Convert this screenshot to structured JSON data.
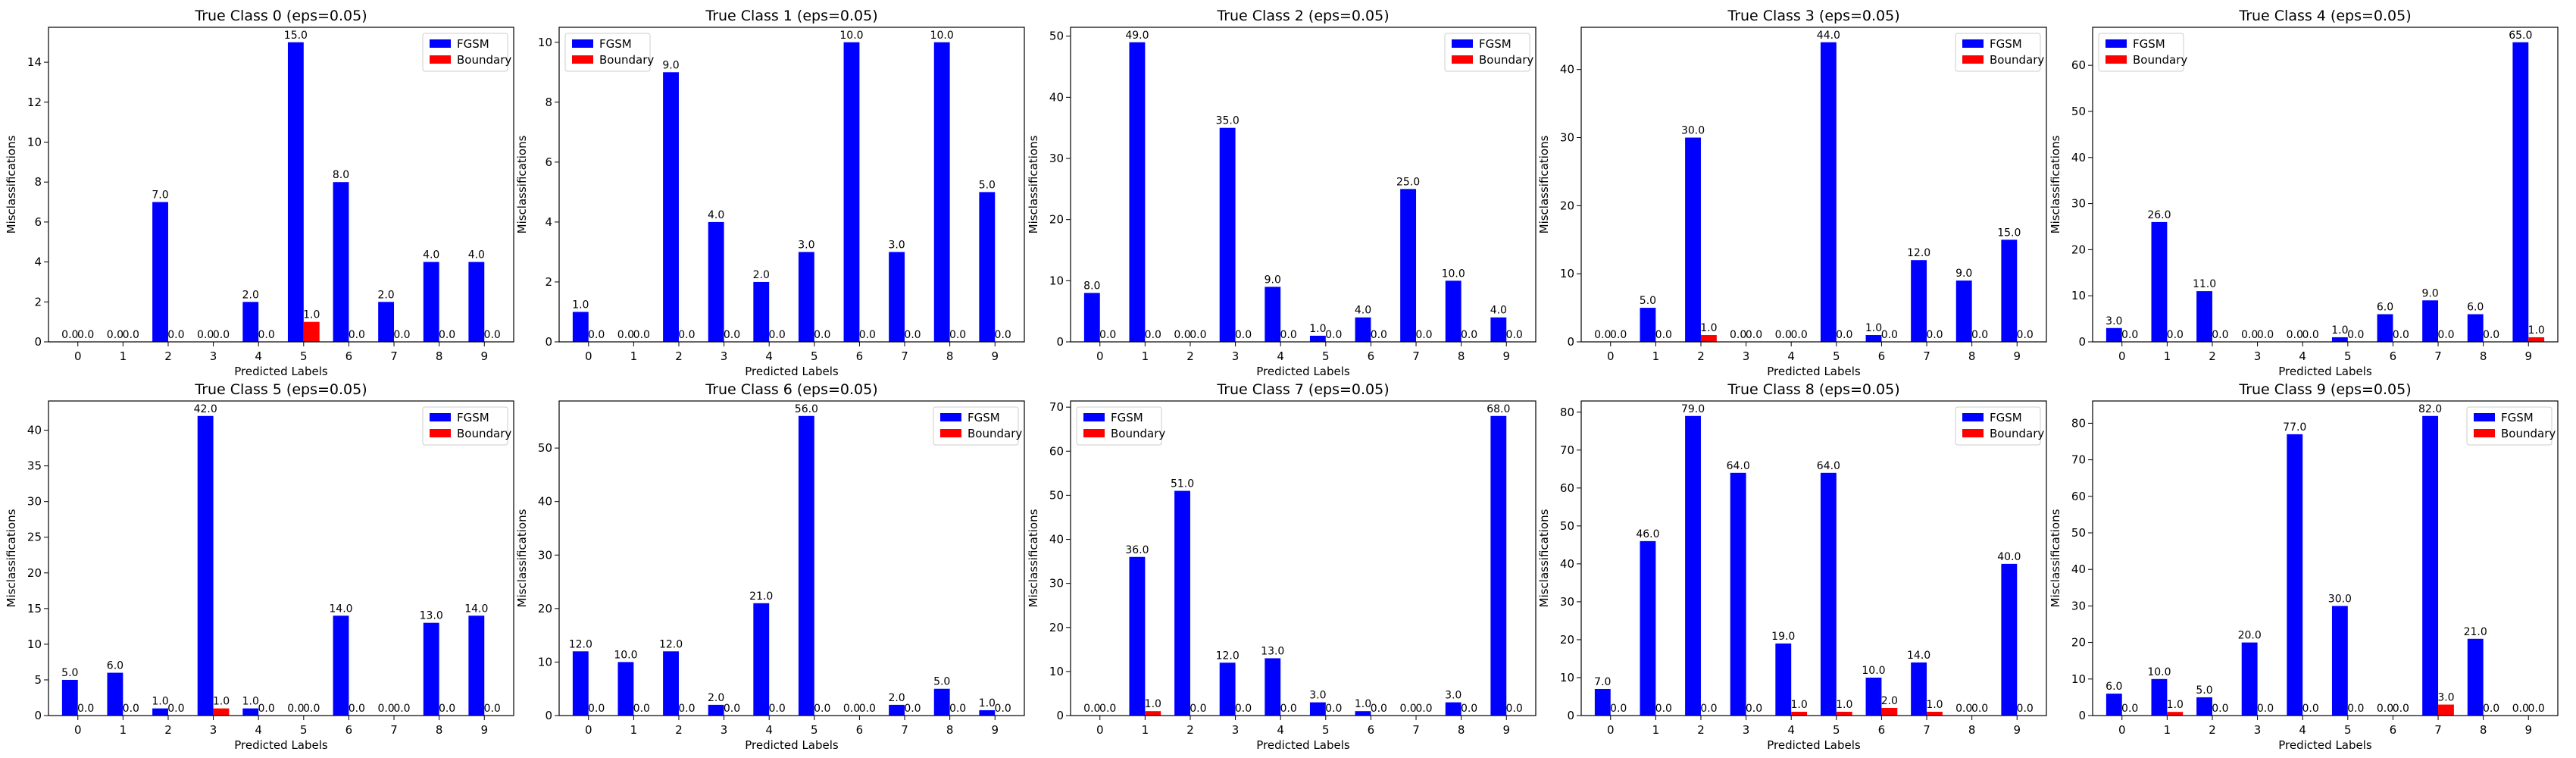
{
  "colors": {
    "fgsm": "#0000ff",
    "boundary": "#ff0000"
  },
  "chart_data": [
    {
      "type": "bar",
      "title": "True Class 0 (eps=0.05)",
      "xlabel": "Predicted Labels",
      "ylabel": "Misclassifications",
      "categories": [
        "0",
        "1",
        "2",
        "3",
        "4",
        "5",
        "6",
        "7",
        "8",
        "9"
      ],
      "ylim": [
        0,
        15.75
      ],
      "yticks": [
        "0",
        "2",
        "4",
        "6",
        "8",
        "10",
        "12",
        "14"
      ],
      "legend_position": "top-right",
      "series": [
        {
          "name": "FGSM",
          "values": [
            0,
            0,
            7,
            0,
            2,
            15,
            8,
            2,
            4,
            4
          ]
        },
        {
          "name": "Boundary",
          "values": [
            0,
            0,
            0,
            0,
            0,
            1,
            0,
            0,
            0,
            0
          ]
        }
      ],
      "value_labels": {
        "fgsm": [
          "0.0",
          "0.0",
          "7.0",
          "0.0",
          "2.0",
          "15.0",
          "8.0",
          "2.0",
          "4.0",
          "4.0"
        ],
        "boundary": [
          "0.0",
          "0.0",
          "0.0",
          "0.0",
          "0.0",
          "1.0",
          "0.0",
          "0.0",
          "0.0",
          "0.0"
        ]
      }
    },
    {
      "type": "bar",
      "title": "True Class 1 (eps=0.05)",
      "xlabel": "Predicted Labels",
      "ylabel": "Misclassifications",
      "categories": [
        "0",
        "1",
        "2",
        "3",
        "4",
        "5",
        "6",
        "7",
        "8",
        "9"
      ],
      "ylim": [
        0,
        10.5
      ],
      "yticks": [
        "0",
        "2",
        "4",
        "6",
        "8",
        "10"
      ],
      "legend_position": "top-left",
      "series": [
        {
          "name": "FGSM",
          "values": [
            1,
            0,
            9,
            4,
            2,
            3,
            10,
            3,
            10,
            5
          ]
        },
        {
          "name": "Boundary",
          "values": [
            0,
            0,
            0,
            0,
            0,
            0,
            0,
            0,
            0,
            0
          ]
        }
      ],
      "value_labels": {
        "fgsm": [
          "1.0",
          "0.0",
          "9.0",
          "4.0",
          "2.0",
          "3.0",
          "10.0",
          "3.0",
          "10.0",
          "5.0"
        ],
        "boundary": [
          "0.0",
          "0.0",
          "0.0",
          "0.0",
          "0.0",
          "0.0",
          "0.0",
          "0.0",
          "0.0",
          "0.0"
        ]
      }
    },
    {
      "type": "bar",
      "title": "True Class 2 (eps=0.05)",
      "xlabel": "Predicted Labels",
      "ylabel": "Misclassifications",
      "categories": [
        "0",
        "1",
        "2",
        "3",
        "4",
        "5",
        "6",
        "7",
        "8",
        "9"
      ],
      "ylim": [
        0,
        51.45
      ],
      "yticks": [
        "0",
        "10",
        "20",
        "30",
        "40",
        "50"
      ],
      "legend_position": "top-right",
      "series": [
        {
          "name": "FGSM",
          "values": [
            8,
            49,
            0,
            35,
            9,
            1,
            4,
            25,
            10,
            4
          ]
        },
        {
          "name": "Boundary",
          "values": [
            0,
            0,
            0,
            0,
            0,
            0,
            0,
            0,
            0,
            0
          ]
        }
      ],
      "value_labels": {
        "fgsm": [
          "8.0",
          "49.0",
          "0.0",
          "35.0",
          "9.0",
          "1.0",
          "4.0",
          "25.0",
          "10.0",
          "4.0"
        ],
        "boundary": [
          "0.0",
          "0.0",
          "0.0",
          "0.0",
          "0.0",
          "0.0",
          "0.0",
          "0.0",
          "0.0",
          "0.0"
        ]
      }
    },
    {
      "type": "bar",
      "title": "True Class 3 (eps=0.05)",
      "xlabel": "Predicted Labels",
      "ylabel": "Misclassifications",
      "categories": [
        "0",
        "1",
        "2",
        "3",
        "4",
        "5",
        "6",
        "7",
        "8",
        "9"
      ],
      "ylim": [
        0,
        46.2
      ],
      "yticks": [
        "0",
        "10",
        "20",
        "30",
        "40"
      ],
      "legend_position": "top-right",
      "series": [
        {
          "name": "FGSM",
          "values": [
            0,
            5,
            30,
            0,
            0,
            44,
            1,
            12,
            9,
            15
          ]
        },
        {
          "name": "Boundary",
          "values": [
            0,
            0,
            1,
            0,
            0,
            0,
            0,
            0,
            0,
            0
          ]
        }
      ],
      "value_labels": {
        "fgsm": [
          "0.0",
          "5.0",
          "30.0",
          "0.0",
          "0.0",
          "44.0",
          "1.0",
          "12.0",
          "9.0",
          "15.0"
        ],
        "boundary": [
          "0.0",
          "0.0",
          "1.0",
          "0.0",
          "0.0",
          "0.0",
          "0.0",
          "0.0",
          "0.0",
          "0.0"
        ]
      }
    },
    {
      "type": "bar",
      "title": "True Class 4 (eps=0.05)",
      "xlabel": "Predicted Labels",
      "ylabel": "Misclassifications",
      "categories": [
        "0",
        "1",
        "2",
        "3",
        "4",
        "5",
        "6",
        "7",
        "8",
        "9"
      ],
      "ylim": [
        0,
        68.25
      ],
      "yticks": [
        "0",
        "10",
        "20",
        "30",
        "40",
        "50",
        "60"
      ],
      "legend_position": "top-left",
      "series": [
        {
          "name": "FGSM",
          "values": [
            3,
            26,
            11,
            0,
            0,
            1,
            6,
            9,
            6,
            65
          ]
        },
        {
          "name": "Boundary",
          "values": [
            0,
            0,
            0,
            0,
            0,
            0,
            0,
            0,
            0,
            1
          ]
        }
      ],
      "value_labels": {
        "fgsm": [
          "3.0",
          "26.0",
          "11.0",
          "0.0",
          "0.0",
          "1.0",
          "6.0",
          "9.0",
          "6.0",
          "65.0"
        ],
        "boundary": [
          "0.0",
          "0.0",
          "0.0",
          "0.0",
          "0.0",
          "0.0",
          "0.0",
          "0.0",
          "0.0",
          "1.0"
        ]
      }
    },
    {
      "type": "bar",
      "title": "True Class 5 (eps=0.05)",
      "xlabel": "Predicted Labels",
      "ylabel": "Misclassifications",
      "categories": [
        "0",
        "1",
        "2",
        "3",
        "4",
        "5",
        "6",
        "7",
        "8",
        "9"
      ],
      "ylim": [
        0,
        44.1
      ],
      "yticks": [
        "0",
        "5",
        "10",
        "15",
        "20",
        "25",
        "30",
        "35",
        "40"
      ],
      "legend_position": "top-right",
      "series": [
        {
          "name": "FGSM",
          "values": [
            5,
            6,
            1,
            42,
            1,
            0,
            14,
            0,
            13,
            14
          ]
        },
        {
          "name": "Boundary",
          "values": [
            0,
            0,
            0,
            1,
            0,
            0,
            0,
            0,
            0,
            0
          ]
        }
      ],
      "value_labels": {
        "fgsm": [
          "5.0",
          "6.0",
          "1.0",
          "42.0",
          "1.0",
          "0.0",
          "14.0",
          "0.0",
          "13.0",
          "14.0"
        ],
        "boundary": [
          "0.0",
          "0.0",
          "0.0",
          "1.0",
          "0.0",
          "0.0",
          "0.0",
          "0.0",
          "0.0",
          "0.0"
        ]
      }
    },
    {
      "type": "bar",
      "title": "True Class 6 (eps=0.05)",
      "xlabel": "Predicted Labels",
      "ylabel": "Misclassifications",
      "categories": [
        "0",
        "1",
        "2",
        "3",
        "4",
        "5",
        "6",
        "7",
        "8",
        "9"
      ],
      "ylim": [
        0,
        58.8
      ],
      "yticks": [
        "0",
        "10",
        "20",
        "30",
        "40",
        "50"
      ],
      "legend_position": "top-right",
      "series": [
        {
          "name": "FGSM",
          "values": [
            12,
            10,
            12,
            2,
            21,
            56,
            0,
            2,
            5,
            1
          ]
        },
        {
          "name": "Boundary",
          "values": [
            0,
            0,
            0,
            0,
            0,
            0,
            0,
            0,
            0,
            0
          ]
        }
      ],
      "value_labels": {
        "fgsm": [
          "12.0",
          "10.0",
          "12.0",
          "2.0",
          "21.0",
          "56.0",
          "0.0",
          "2.0",
          "5.0",
          "1.0"
        ],
        "boundary": [
          "0.0",
          "0.0",
          "0.0",
          "0.0",
          "0.0",
          "0.0",
          "0.0",
          "0.0",
          "0.0",
          "0.0"
        ]
      }
    },
    {
      "type": "bar",
      "title": "True Class 7 (eps=0.05)",
      "xlabel": "Predicted Labels",
      "ylabel": "Misclassifications",
      "categories": [
        "0",
        "1",
        "2",
        "3",
        "4",
        "5",
        "6",
        "7",
        "8",
        "9"
      ],
      "ylim": [
        0,
        71.4
      ],
      "yticks": [
        "0",
        "10",
        "20",
        "30",
        "40",
        "50",
        "60",
        "70"
      ],
      "legend_position": "top-left",
      "series": [
        {
          "name": "FGSM",
          "values": [
            0,
            36,
            51,
            12,
            13,
            3,
            1,
            0,
            3,
            68
          ]
        },
        {
          "name": "Boundary",
          "values": [
            0,
            1,
            0,
            0,
            0,
            0,
            0,
            0,
            0,
            0
          ]
        }
      ],
      "value_labels": {
        "fgsm": [
          "0.0",
          "36.0",
          "51.0",
          "12.0",
          "13.0",
          "3.0",
          "1.0",
          "0.0",
          "3.0",
          "68.0"
        ],
        "boundary": [
          "0.0",
          "1.0",
          "0.0",
          "0.0",
          "0.0",
          "0.0",
          "0.0",
          "0.0",
          "0.0",
          "0.0"
        ]
      }
    },
    {
      "type": "bar",
      "title": "True Class 8 (eps=0.05)",
      "xlabel": "Predicted Labels",
      "ylabel": "Misclassifications",
      "categories": [
        "0",
        "1",
        "2",
        "3",
        "4",
        "5",
        "6",
        "7",
        "8",
        "9"
      ],
      "ylim": [
        0,
        82.95
      ],
      "yticks": [
        "0",
        "10",
        "20",
        "30",
        "40",
        "50",
        "60",
        "70",
        "80"
      ],
      "legend_position": "top-right",
      "series": [
        {
          "name": "FGSM",
          "values": [
            7,
            46,
            79,
            64,
            19,
            64,
            10,
            14,
            0,
            40
          ]
        },
        {
          "name": "Boundary",
          "values": [
            0,
            0,
            0,
            0,
            1,
            1,
            2,
            1,
            0,
            0
          ]
        }
      ],
      "value_labels": {
        "fgsm": [
          "7.0",
          "46.0",
          "79.0",
          "64.0",
          "19.0",
          "64.0",
          "10.0",
          "14.0",
          "0.0",
          "40.0"
        ],
        "boundary": [
          "0.0",
          "0.0",
          "0.0",
          "0.0",
          "1.0",
          "1.0",
          "2.0",
          "1.0",
          "0.0",
          "0.0"
        ]
      }
    },
    {
      "type": "bar",
      "title": "True Class 9 (eps=0.05)",
      "xlabel": "Predicted Labels",
      "ylabel": "Misclassifications",
      "categories": [
        "0",
        "1",
        "2",
        "3",
        "4",
        "5",
        "6",
        "7",
        "8",
        "9"
      ],
      "ylim": [
        0,
        86.1
      ],
      "yticks": [
        "0",
        "10",
        "20",
        "30",
        "40",
        "50",
        "60",
        "70",
        "80"
      ],
      "legend_position": "top-right",
      "series": [
        {
          "name": "FGSM",
          "values": [
            6,
            10,
            5,
            20,
            77,
            30,
            0,
            82,
            21,
            0
          ]
        },
        {
          "name": "Boundary",
          "values": [
            0,
            1,
            0,
            0,
            0,
            0,
            0,
            3,
            0,
            0
          ]
        }
      ],
      "value_labels": {
        "fgsm": [
          "6.0",
          "10.0",
          "5.0",
          "20.0",
          "77.0",
          "30.0",
          "0.0",
          "82.0",
          "21.0",
          "0.0"
        ],
        "boundary": [
          "0.0",
          "1.0",
          "0.0",
          "0.0",
          "0.0",
          "0.0",
          "0.0",
          "3.0",
          "0.0",
          "0.0"
        ]
      }
    }
  ]
}
